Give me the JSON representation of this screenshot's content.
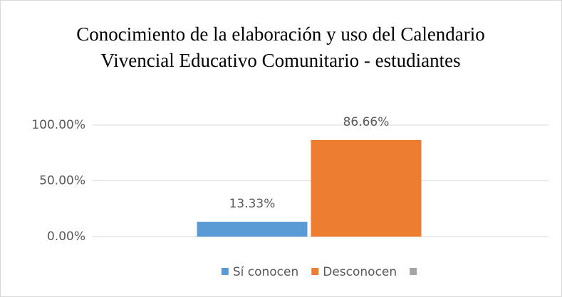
{
  "chart_data": {
    "type": "bar",
    "title": "Conocimiento de la elaboración y uso del Calendario Vivencial Educativo Comunitario - estudiantes",
    "categories": [
      null
    ],
    "series": [
      {
        "name": "Sí conocen",
        "color": "#5b9bd5",
        "values": [
          13.33
        ],
        "value_labels": [
          "13.33%"
        ]
      },
      {
        "name": "Desconocen",
        "color": "#ed7d31",
        "values": [
          86.66
        ],
        "value_labels": [
          "86.66%"
        ]
      },
      {
        "name": null,
        "color": "#a5a5a5",
        "values": [
          null
        ]
      }
    ],
    "ylim": [
      0,
      100
    ],
    "yticks": [
      {
        "value": 0,
        "label": "0.00%"
      },
      {
        "value": 50,
        "label": "50.00%"
      },
      {
        "value": 100,
        "label": "100.00%"
      }
    ],
    "grid": true,
    "legend": "bottom"
  }
}
